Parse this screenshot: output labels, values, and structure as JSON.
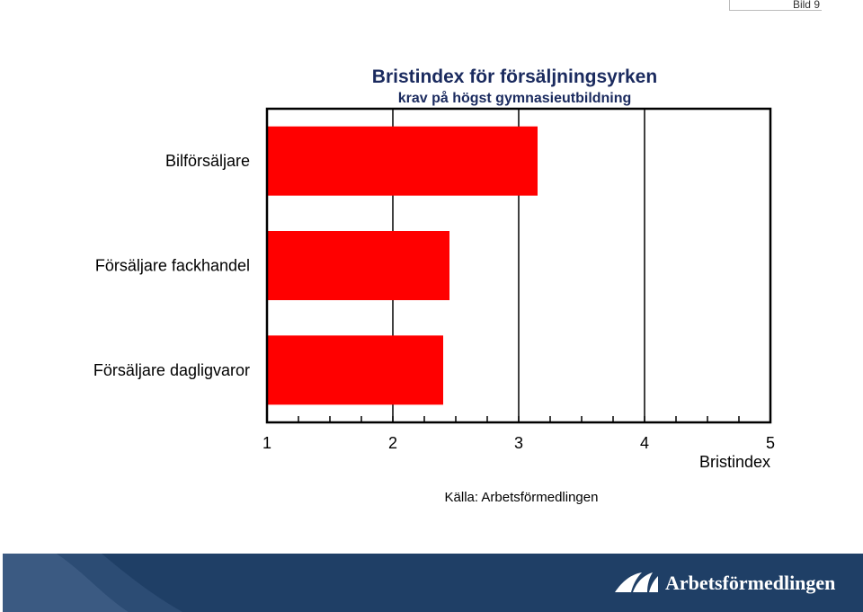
{
  "slide": {
    "label": "Bild 9"
  },
  "source": "Källa: Arbetsförmedlingen",
  "brand": {
    "name": "Arbetsförmedlingen",
    "footer_color": "#1f3f66",
    "title_color": "#1a2a5e"
  },
  "chart_data": {
    "type": "bar",
    "orientation": "horizontal",
    "title": "Bristindex för försäljningsyrken",
    "subtitle": "krav på högst gymnasieutbildning",
    "xlabel": "Bristindex",
    "categories": [
      "Bilförsäljare",
      "Försäljare fackhandel",
      "Försäljare dagligvaror"
    ],
    "values": [
      3.15,
      2.45,
      2.4
    ],
    "xlim": [
      1,
      5
    ],
    "xticks": [
      1,
      2,
      3,
      4,
      5
    ],
    "minor_tick_step": 0.25,
    "bar_color": "#ff0000",
    "grid": true,
    "legend": "none"
  }
}
